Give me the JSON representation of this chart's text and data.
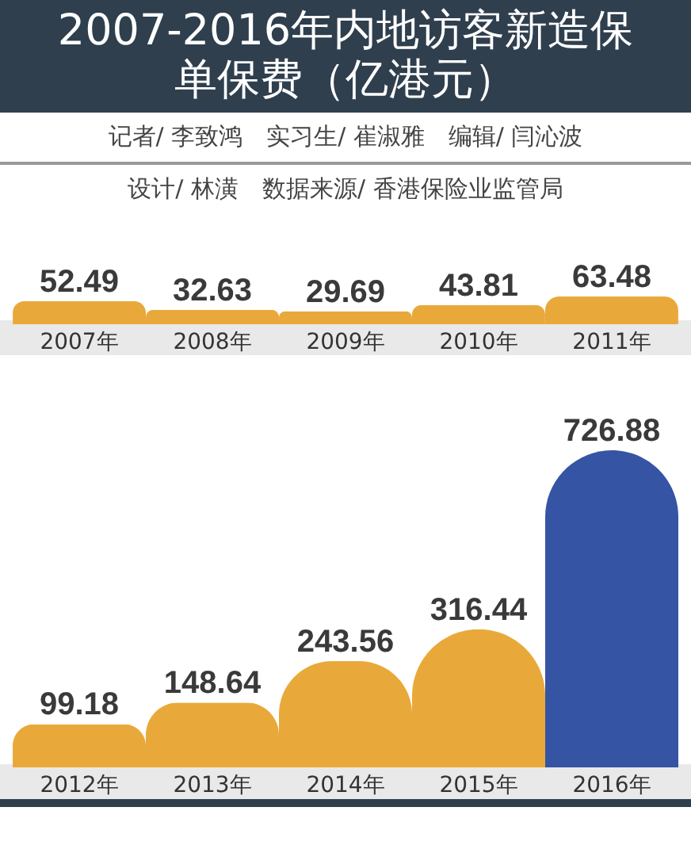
{
  "chart_data": [
    {
      "type": "bar",
      "title": "2007-2016年内地访客新造保单保费（亿港元）",
      "annotations": [
        "记者/ 李致鸿　实习生/ 崔淑雅　编辑/ 闫沁波",
        "设计/ 林潢　数据来源/ 香港保险业监管局"
      ],
      "categories": [
        "2007年",
        "2008年",
        "2009年",
        "2010年",
        "2011年"
      ],
      "values": [
        52.49,
        32.63,
        29.69,
        43.81,
        63.48
      ],
      "colors": [
        "#e9a93a",
        "#e9a93a",
        "#e9a93a",
        "#e9a93a",
        "#e9a93a"
      ],
      "data_labels": true
    },
    {
      "type": "bar",
      "categories": [
        "2012年",
        "2013年",
        "2014年",
        "2015年",
        "2016年"
      ],
      "values": [
        99.18,
        148.64,
        243.56,
        316.44,
        726.88
      ],
      "colors": [
        "#e9a93a",
        "#e9a93a",
        "#e9a93a",
        "#e9a93a",
        "#3554a4"
      ],
      "data_labels": true
    }
  ]
}
